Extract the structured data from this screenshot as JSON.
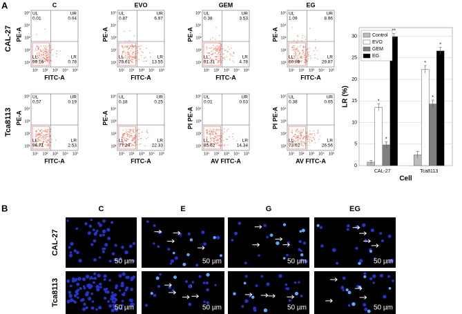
{
  "panel_a": {
    "label": "A",
    "columns": [
      "C",
      "EVO",
      "GEM",
      "EG"
    ],
    "rows": [
      {
        "name": "CAL-27",
        "y_labels": [
          "PE-A",
          "PE-A",
          "PE-A",
          "PE-A"
        ],
        "x_labels": [
          "FITC-A",
          "FITC-A",
          "FITC-A",
          "FITC-A"
        ],
        "plots": [
          {
            "UL": "0.01",
            "UR": "0.04",
            "LL": "99.16",
            "LR": "0.78"
          },
          {
            "UL": "0.87",
            "UR": "6.97",
            "LL": "78.61",
            "LR": "13.55"
          },
          {
            "UL": "0.38",
            "UR": "3.53",
            "LL": "91.31",
            "LR": "4.78"
          },
          {
            "UL": "1.09",
            "UR": "8.96",
            "LL": "60.08",
            "LR": "29.87"
          }
        ]
      },
      {
        "name": "Tca8113",
        "y_labels": [
          "PE-A",
          "PE-A",
          "PI PE-A",
          "PI PE-A"
        ],
        "x_labels": [
          "FITC-A",
          "FITC-A",
          "AV FITC-A",
          "AV FITC-A"
        ],
        "plots": [
          {
            "UL": "0.57",
            "UR": "0.19",
            "LL": "96.71",
            "LR": "2.53"
          },
          {
            "UL": "0.18",
            "UR": "0.25",
            "LL": "77.24",
            "LR": "22.33"
          },
          {
            "UL": "0.01",
            "UR": "0.03",
            "LL": "85.62",
            "LR": "14.34"
          },
          {
            "UL": "0.38",
            "UR": "0.05",
            "LL": "73.02",
            "LR": "26.56"
          }
        ]
      }
    ],
    "quadrants": [
      "UL",
      "UR",
      "LL",
      "LR"
    ],
    "axis_ticks": [
      "10¹",
      "10²",
      "10³",
      "10⁴",
      "10⁵"
    ]
  },
  "chart_data": {
    "type": "bar",
    "x_label": "Cell",
    "y_label": "LR (%)",
    "categories": [
      "CAL-27",
      "Tca8113"
    ],
    "series": [
      {
        "name": "Control",
        "color": "#bdbdbd",
        "values": [
          0.8,
          2.5
        ],
        "errors": [
          0.4,
          0.8
        ],
        "significance": [
          null,
          null
        ]
      },
      {
        "name": "EVO",
        "color": "#ffffff",
        "values": [
          13.5,
          22.3
        ],
        "errors": [
          0.8,
          0.9
        ],
        "significance": [
          "*",
          "*"
        ]
      },
      {
        "name": "GEM",
        "color": "#808080",
        "values": [
          4.8,
          14.3
        ],
        "errors": [
          0.7,
          0.9
        ],
        "significance": [
          "*",
          "*"
        ]
      },
      {
        "name": "EG",
        "color": "#000000",
        "values": [
          29.9,
          26.6
        ],
        "errors": [
          0.7,
          0.8
        ],
        "significance": [
          "**",
          "*"
        ]
      }
    ],
    "ylim": [
      0,
      32
    ],
    "yticks": [
      0,
      5,
      10,
      15,
      20,
      25,
      30
    ],
    "legend": "upper left"
  },
  "panel_b": {
    "label": "B",
    "columns": [
      "C",
      "E",
      "G",
      "EG"
    ],
    "rows": [
      "CAL-27",
      "Tca8113"
    ],
    "scale_bar": "50 µm"
  }
}
